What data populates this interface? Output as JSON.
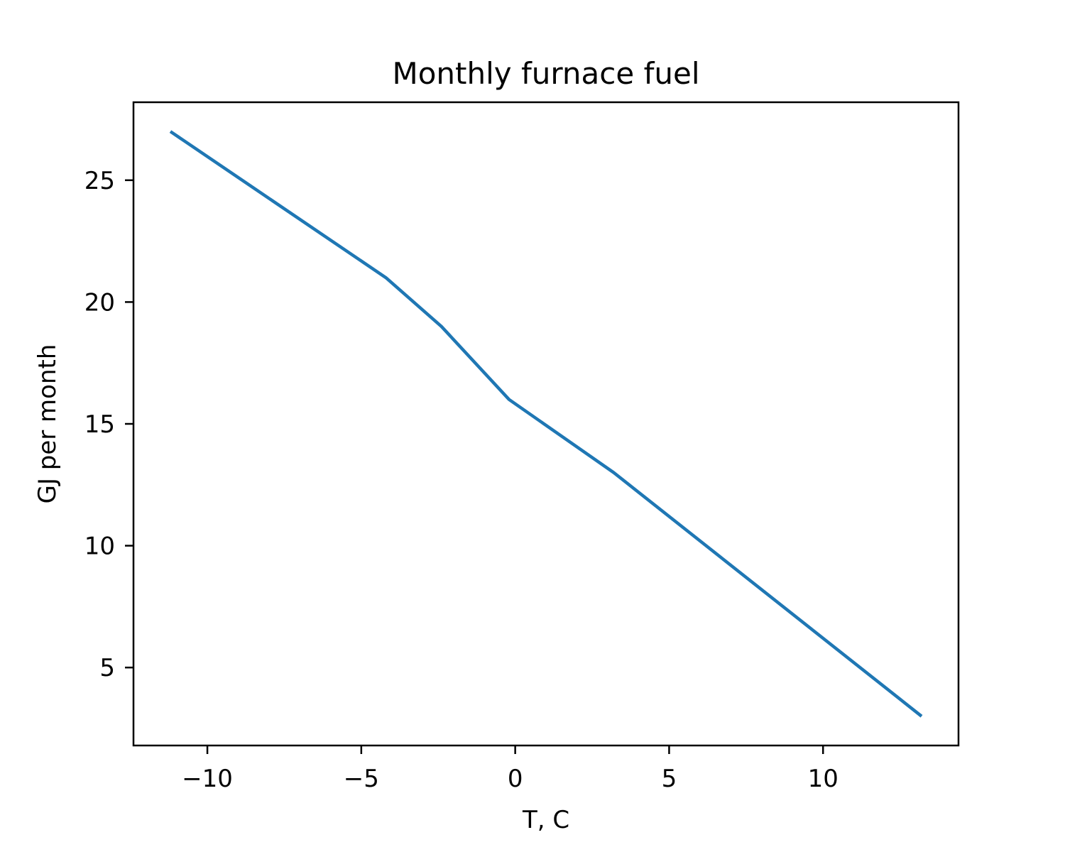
{
  "chart_data": {
    "type": "line",
    "title": "Monthly furnace fuel",
    "xlabel": "T, C",
    "ylabel": "GJ per month",
    "xlim": [
      -12.4,
      14.4
    ],
    "ylim": [
      1.8,
      28.2
    ],
    "xticks": [
      -10,
      -5,
      0,
      5,
      10
    ],
    "xtick_labels": [
      "−10",
      "−5",
      "0",
      "5",
      "10"
    ],
    "yticks": [
      5,
      10,
      15,
      20,
      25
    ],
    "ytick_labels": [
      "5",
      "10",
      "15",
      "20",
      "25"
    ],
    "grid": false,
    "series": [
      {
        "color": "#1f77b4",
        "x": [
          -11.2,
          -4.2,
          -2.4,
          -0.2,
          3.2,
          13.2
        ],
        "y": [
          27.0,
          21.0,
          19.0,
          16.0,
          13.0,
          3.0
        ]
      }
    ]
  }
}
